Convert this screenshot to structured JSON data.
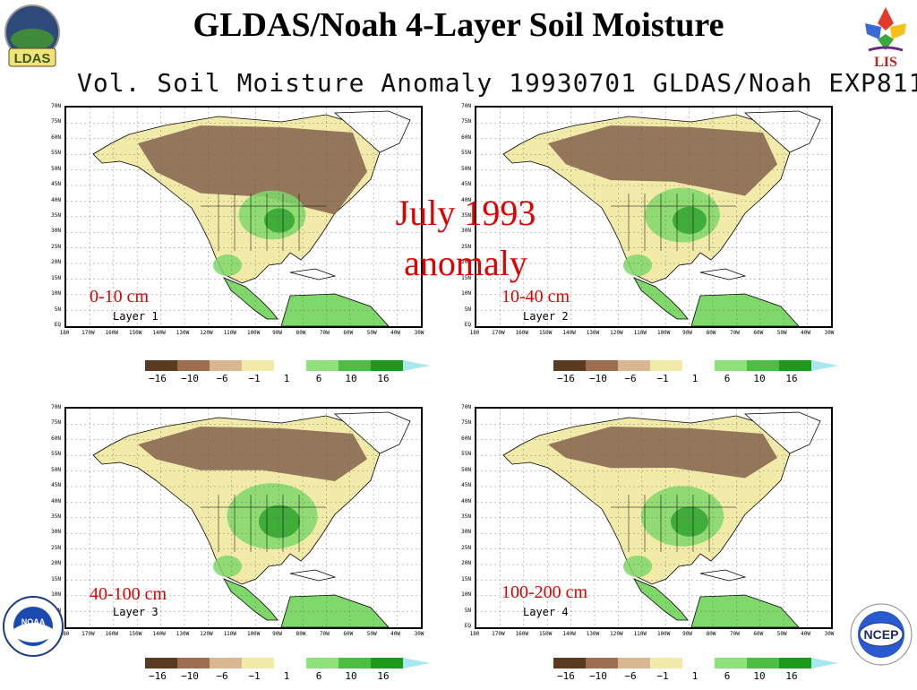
{
  "title": "GLDAS/Noah 4-Layer Soil Moisture",
  "subtitle": "Vol. Soil Moisture Anomaly 19930701 GLDAS/Noah EXP811",
  "overlay": {
    "line1": "July 1993",
    "line2": "anomaly"
  },
  "logos": {
    "ldas": "LDAS",
    "lis": "LIS",
    "noaa": "NOAA",
    "ncep": "NCEP"
  },
  "map_axes": {
    "lat_labels": [
      "70N",
      "75N",
      "60N",
      "55N",
      "50N",
      "45N",
      "40N",
      "35N",
      "30N",
      "25N",
      "20N",
      "15N",
      "10N",
      "5N",
      "EQ"
    ],
    "lon_labels": [
      "180",
      "170W",
      "160W",
      "150W",
      "140W",
      "130W",
      "120W",
      "110W",
      "100W",
      "90W",
      "80W",
      "70W",
      "60W",
      "50W",
      "40W",
      "30W"
    ]
  },
  "panels": [
    {
      "depth": "0-10 cm",
      "layer": "Layer 1",
      "dry_level": 0.85,
      "wet_level": 0.35
    },
    {
      "depth": "10-40 cm",
      "layer": "Layer 2",
      "dry_level": 0.55,
      "wet_level": 0.45
    },
    {
      "depth": "40-100 cm",
      "layer": "Layer 3",
      "dry_level": 0.3,
      "wet_level": 0.65
    },
    {
      "depth": "100-200 cm",
      "layer": "Layer 4",
      "dry_level": 0.25,
      "wet_level": 0.55
    }
  ],
  "legend": {
    "ticks": [
      "−16",
      "−10",
      "−6",
      "−1",
      "1",
      "6",
      "10",
      "16"
    ],
    "colors": [
      "#ffffff",
      "#5a3a20",
      "#9e6e50",
      "#d8b890",
      "#f2eaa8",
      "#ffffff",
      "#8ee07a",
      "#4cbe44",
      "#1c9a1c",
      "#a8e8f0"
    ]
  },
  "colors": {
    "ocean": "#ffffff",
    "very_dry": "#8a6a52",
    "dry": "#f2eaa8",
    "wet": "#7fd86a",
    "very_wet": "#2ca02c",
    "depth_label": "#e00000"
  }
}
